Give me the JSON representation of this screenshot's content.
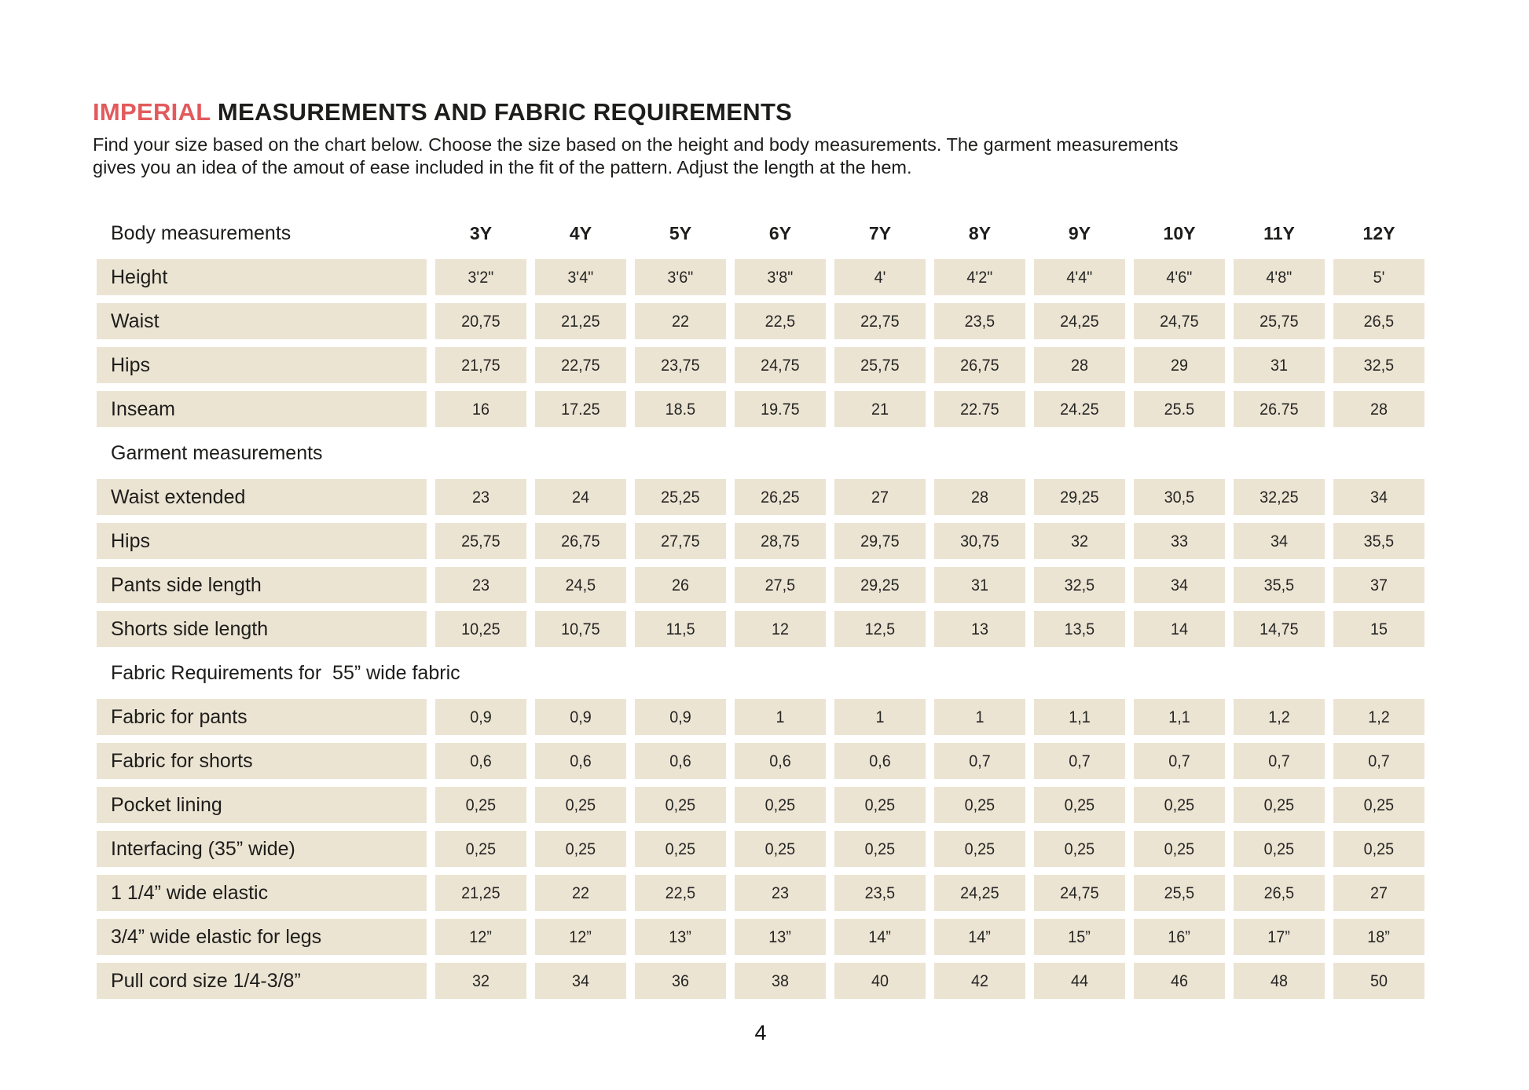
{
  "page": {
    "title": {
      "highlight": "IMPERIAL",
      "rest": " MEASUREMENTS AND FABRIC REQUIREMENTS"
    },
    "subtitle_lines": [
      "Find your size based on the chart below. Choose the size based on the height and body measurements. The garment measurements",
      "gives you an idea of the amout of ease included in the fit of the pattern. Adjust the length at the hem."
    ],
    "page_number": "4"
  },
  "colors": {
    "accent_red": "#e25a5c",
    "cell_beige": "#ece4d3",
    "text_dark": "#1d1d1b",
    "background": "#ffffff"
  },
  "table": {
    "corner_label": "Body measurements",
    "sizes": [
      "3Y",
      "4Y",
      "5Y",
      "6Y",
      "7Y",
      "8Y",
      "9Y",
      "10Y",
      "11Y",
      "12Y"
    ],
    "sections": [
      {
        "header": null,
        "rows": [
          {
            "label": "Height",
            "values": [
              "3'2\"",
              "3'4\"",
              "3'6\"",
              "3'8\"",
              "4'",
              "4'2\"",
              "4'4\"",
              "4'6\"",
              "4'8\"",
              "5'"
            ]
          },
          {
            "label": "Waist",
            "values": [
              "20,75",
              "21,25",
              "22",
              "22,5",
              "22,75",
              "23,5",
              "24,25",
              "24,75",
              "25,75",
              "26,5"
            ]
          },
          {
            "label": "Hips",
            "values": [
              "21,75",
              "22,75",
              "23,75",
              "24,75",
              "25,75",
              "26,75",
              "28",
              "29",
              "31",
              "32,5"
            ]
          },
          {
            "label": "Inseam",
            "values": [
              "16",
              "17.25",
              "18.5",
              "19.75",
              "21",
              "22.75",
              "24.25",
              "25.5",
              "26.75",
              "28"
            ]
          }
        ]
      },
      {
        "header": "Garment measurements",
        "rows": [
          {
            "label": "Waist extended",
            "values": [
              "23",
              "24",
              "25,25",
              "26,25",
              "27",
              "28",
              "29,25",
              "30,5",
              "32,25",
              "34"
            ]
          },
          {
            "label": "Hips",
            "values": [
              "25,75",
              "26,75",
              "27,75",
              "28,75",
              "29,75",
              "30,75",
              "32",
              "33",
              "34",
              "35,5"
            ]
          },
          {
            "label": "Pants side length",
            "values": [
              "23",
              "24,5",
              "26",
              "27,5",
              "29,25",
              "31",
              "32,5",
              "34",
              "35,5",
              "37"
            ]
          },
          {
            "label": "Shorts side length",
            "values": [
              "10,25",
              "10,75",
              "11,5",
              "12",
              "12,5",
              "13",
              "13,5",
              "14",
              "14,75",
              "15"
            ]
          }
        ]
      },
      {
        "header": "Fabric Requirements for  55” wide fabric",
        "rows": [
          {
            "label": "Fabric for pants",
            "values": [
              "0,9",
              "0,9",
              "0,9",
              "1",
              "1",
              "1",
              "1,1",
              "1,1",
              "1,2",
              "1,2"
            ]
          },
          {
            "label": "Fabric for shorts",
            "values": [
              "0,6",
              "0,6",
              "0,6",
              "0,6",
              "0,6",
              "0,7",
              "0,7",
              "0,7",
              "0,7",
              "0,7"
            ]
          },
          {
            "label": "Pocket lining",
            "values": [
              "0,25",
              "0,25",
              "0,25",
              "0,25",
              "0,25",
              "0,25",
              "0,25",
              "0,25",
              "0,25",
              "0,25"
            ]
          },
          {
            "label": "Interfacing (35” wide)",
            "values": [
              "0,25",
              "0,25",
              "0,25",
              "0,25",
              "0,25",
              "0,25",
              "0,25",
              "0,25",
              "0,25",
              "0,25"
            ]
          },
          {
            "label": "1 1/4” wide elastic",
            "values": [
              "21,25",
              "22",
              "22,5",
              "23",
              "23,5",
              "24,25",
              "24,75",
              "25,5",
              "26,5",
              "27"
            ]
          },
          {
            "label": "3/4” wide elastic for legs",
            "values": [
              "12”",
              "12”",
              "13”",
              "13”",
              "14”",
              "14”",
              "15”",
              "16”",
              "17”",
              "18”"
            ]
          },
          {
            "label": "Pull cord size 1/4-3/8”",
            "values": [
              "32",
              "34",
              "36",
              "38",
              "40",
              "42",
              "44",
              "46",
              "48",
              "50"
            ]
          }
        ]
      }
    ]
  }
}
